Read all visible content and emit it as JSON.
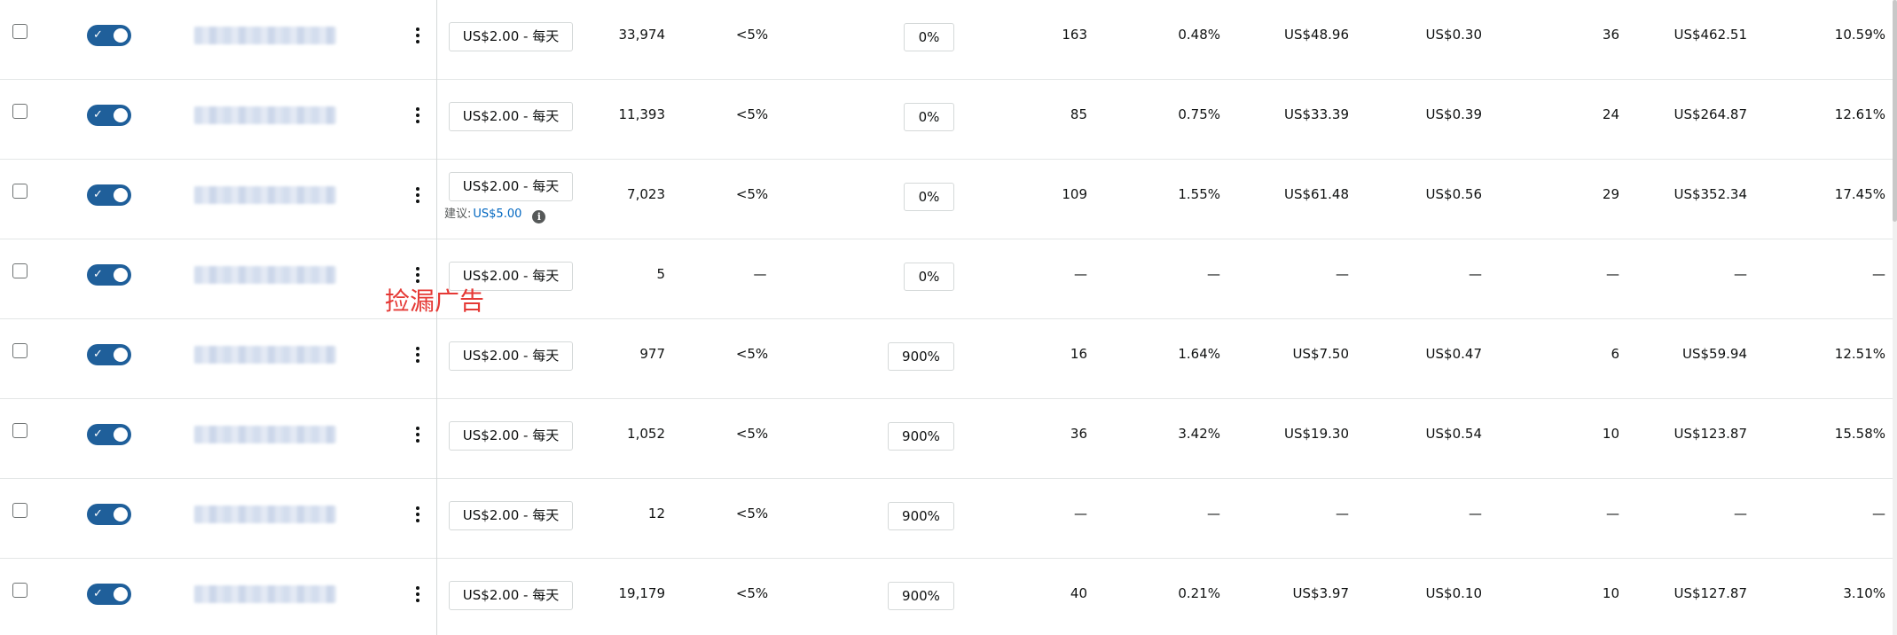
{
  "annotation": "捡漏广告",
  "suggestion": {
    "label": "建议:",
    "value": "US$5.00"
  },
  "info_icon": "i",
  "rows": [
    {
      "budget": "US$2.00 - 每天",
      "impressions": "33,974",
      "top_share": "<5%",
      "bid_adjust": "0%",
      "clicks": "163",
      "ctr": "0.48%",
      "spend": "US$48.96",
      "cpc": "US$0.30",
      "orders": "36",
      "sales": "US$462.51",
      "acos": "10.59%"
    },
    {
      "budget": "US$2.00 - 每天",
      "impressions": "11,393",
      "top_share": "<5%",
      "bid_adjust": "0%",
      "clicks": "85",
      "ctr": "0.75%",
      "spend": "US$33.39",
      "cpc": "US$0.39",
      "orders": "24",
      "sales": "US$264.87",
      "acos": "12.61%"
    },
    {
      "budget": "US$2.00 - 每天",
      "impressions": "7,023",
      "top_share": "<5%",
      "bid_adjust": "0%",
      "clicks": "109",
      "ctr": "1.55%",
      "spend": "US$61.48",
      "cpc": "US$0.56",
      "orders": "29",
      "sales": "US$352.34",
      "acos": "17.45%"
    },
    {
      "budget": "US$2.00 - 每天",
      "impressions": "5",
      "top_share": "—",
      "bid_adjust": "0%",
      "clicks": "—",
      "ctr": "—",
      "spend": "—",
      "cpc": "—",
      "orders": "—",
      "sales": "—",
      "acos": "—"
    },
    {
      "budget": "US$2.00 - 每天",
      "impressions": "977",
      "top_share": "<5%",
      "bid_adjust": "900%",
      "clicks": "16",
      "ctr": "1.64%",
      "spend": "US$7.50",
      "cpc": "US$0.47",
      "orders": "6",
      "sales": "US$59.94",
      "acos": "12.51%"
    },
    {
      "budget": "US$2.00 - 每天",
      "impressions": "1,052",
      "top_share": "<5%",
      "bid_adjust": "900%",
      "clicks": "36",
      "ctr": "3.42%",
      "spend": "US$19.30",
      "cpc": "US$0.54",
      "orders": "10",
      "sales": "US$123.87",
      "acos": "15.58%"
    },
    {
      "budget": "US$2.00 - 每天",
      "impressions": "12",
      "top_share": "<5%",
      "bid_adjust": "900%",
      "clicks": "—",
      "ctr": "—",
      "spend": "—",
      "cpc": "—",
      "orders": "—",
      "sales": "—",
      "acos": "—"
    },
    {
      "budget": "US$2.00 - 每天",
      "impressions": "19,179",
      "top_share": "<5%",
      "bid_adjust": "900%",
      "clicks": "40",
      "ctr": "0.21%",
      "spend": "US$3.97",
      "cpc": "US$0.10",
      "orders": "10",
      "sales": "US$127.87",
      "acos": "3.10%"
    }
  ]
}
